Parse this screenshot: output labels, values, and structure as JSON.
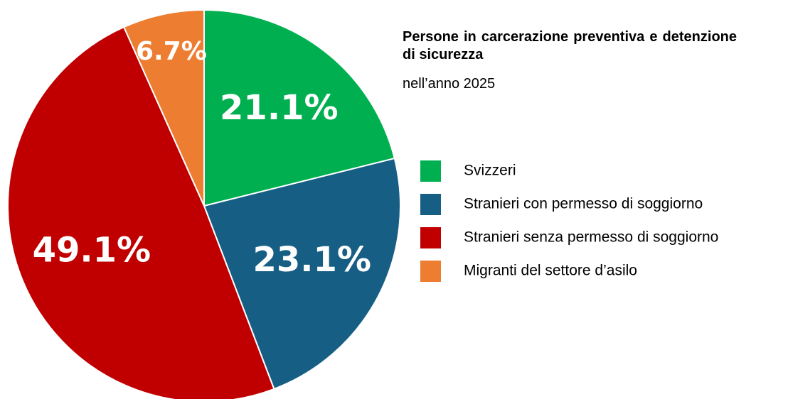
{
  "chart_data": {
    "type": "pie",
    "title": "Persone in carcerazione preventiva e detenzione di sicurezza",
    "subtitle": "nell’anno 2025",
    "categories": [
      "Svizzeri",
      "Stranieri con permesso di soggiorno",
      "Stranieri senza permesso di soggiorno",
      "Migranti del settore d’asilo"
    ],
    "values": [
      21.1,
      23.1,
      49.1,
      6.7
    ],
    "value_labels": [
      "21.1%",
      "23.1%",
      "49.1%",
      "6.7%"
    ],
    "colors": [
      "#00b050",
      "#175e84",
      "#c00000",
      "#ed7d31"
    ],
    "legend": "right"
  }
}
